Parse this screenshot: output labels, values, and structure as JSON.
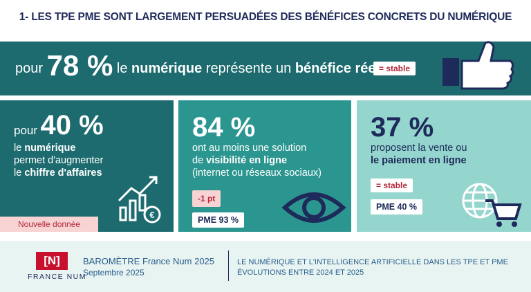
{
  "title": "1- LES TPE PME SONT LARGEMENT PERSUADÉES DES BÉNÉFICES CONCRETS DU NUMÉRIQUE",
  "banner": {
    "prefix": "pour",
    "figure": "78 %",
    "text_1": "le",
    "text_bold_1": "numérique",
    "text_2": "représente un",
    "text_bold_2": "bénéfice réel",
    "badge": "= stable"
  },
  "cards": [
    {
      "prefix": "pour",
      "figure": "40 %",
      "line_1": "le",
      "line_1_bold": "numérique",
      "line_2": "permet d'augmenter",
      "line_3": "le",
      "line_3_bold": "chiffre d'affaires",
      "tag": "Nouvelle donnée"
    },
    {
      "figure": "84 %",
      "line_1": "ont au moins une solution",
      "line_2": "de",
      "line_2_bold": "visibilité en ligne",
      "line_3": "(internet ou réseaux sociaux)",
      "badge": "-1 pt",
      "pme": "PME 93 %"
    },
    {
      "figure": "37 %",
      "line_1": "proposent la vente ou",
      "line_2_bold": "le paiement en ligne",
      "badge": "= stable",
      "pme": "PME 40 %"
    }
  ],
  "footer": {
    "logo": "[N]",
    "brand": "FRANCE NUM",
    "barometer": "BAROMÈTRE France Num 2025",
    "date": "Septembre 2025",
    "subject_1": "LE NUMÉRIQUE ET L'INTELLIGENCE ARTIFICIELLE DANS LES TPE ET PME",
    "subject_2": "ÉVOLUTIONS ENTRE 2024 ET 2025"
  }
}
